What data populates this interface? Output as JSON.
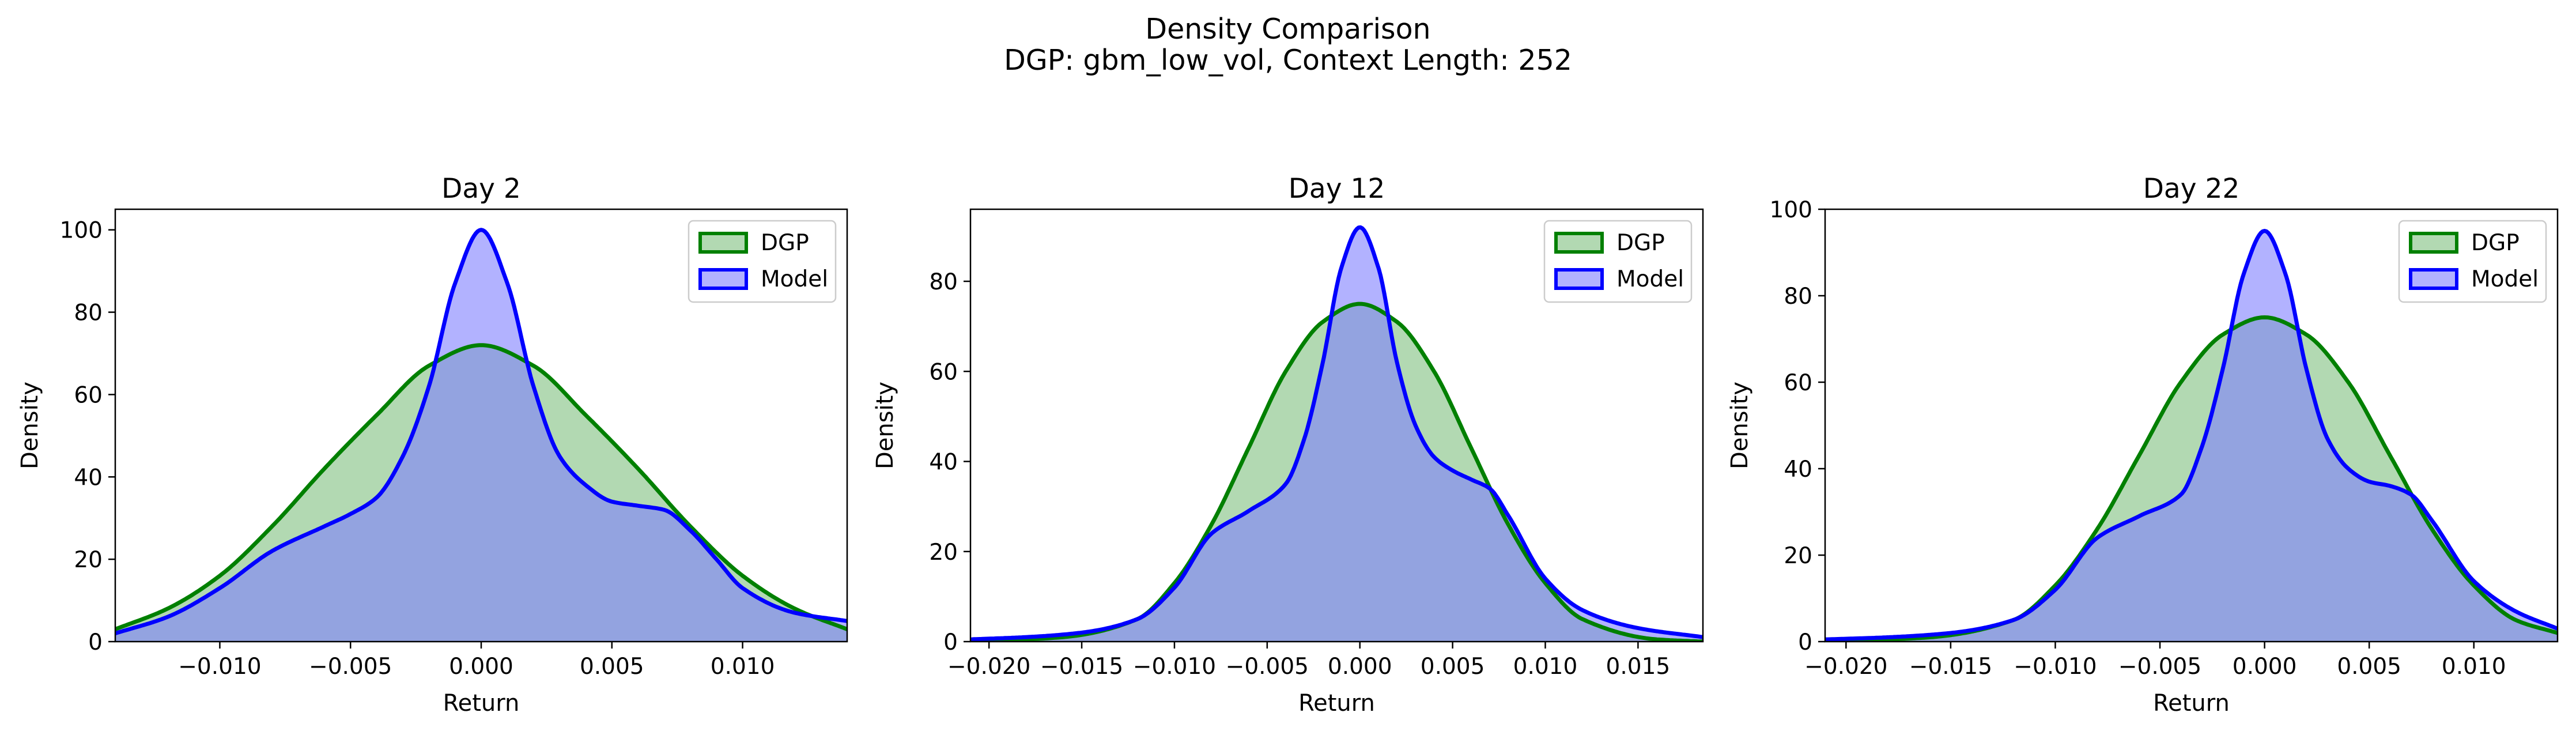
{
  "figure": {
    "title": "Density Comparison",
    "subtitle": "DGP: gbm_low_vol, Context Length: 252"
  },
  "colors": {
    "dgp_line": "#008000",
    "dgp_fill": "#7fbf7f",
    "model_line": "#0000ff",
    "model_fill": "#7f7fff",
    "overlap_fill": "#7f97c8"
  },
  "chart_data": [
    {
      "type": "area",
      "title": "Day 2",
      "xlabel": "Return",
      "ylabel": "Density",
      "xlim": [
        -0.014,
        0.014
      ],
      "ylim": [
        0,
        105
      ],
      "xticks": [
        -0.01,
        -0.005,
        0.0,
        0.005,
        0.01
      ],
      "xtick_labels": [
        "−0.010",
        "−0.005",
        "0.000",
        "0.005",
        "0.010"
      ],
      "yticks": [
        0,
        20,
        40,
        60,
        80,
        100
      ],
      "ytick_labels": [
        "0",
        "20",
        "40",
        "60",
        "80",
        "100"
      ],
      "legend": {
        "position": "top-right",
        "entries": [
          "DGP",
          "Model"
        ]
      },
      "series": [
        {
          "name": "DGP",
          "x": [
            -0.014,
            -0.012,
            -0.01,
            -0.008,
            -0.006,
            -0.004,
            -0.002,
            0.0,
            0.002,
            0.004,
            0.006,
            0.008,
            0.01,
            0.012,
            0.014
          ],
          "values": [
            3,
            8,
            16,
            28,
            42,
            55,
            67,
            72,
            67,
            55,
            42,
            28,
            16,
            8,
            3
          ]
        },
        {
          "name": "Model",
          "x": [
            -0.014,
            -0.012,
            -0.01,
            -0.008,
            -0.006,
            -0.005,
            -0.004,
            -0.003,
            -0.002,
            -0.001,
            0.0,
            0.001,
            0.002,
            0.003,
            0.004,
            0.005,
            0.006,
            0.007,
            0.008,
            0.009,
            0.01,
            0.012,
            0.014
          ],
          "values": [
            2,
            6,
            13,
            22,
            28,
            31,
            35,
            45,
            62,
            87,
            100,
            87,
            62,
            45,
            38,
            34,
            33,
            32,
            27,
            20,
            13,
            7,
            5
          ]
        }
      ]
    },
    {
      "type": "area",
      "title": "Day 12",
      "xlabel": "Return",
      "ylabel": "Density",
      "xlim": [
        -0.021,
        0.0185
      ],
      "ylim": [
        0,
        96
      ],
      "xticks": [
        -0.02,
        -0.015,
        -0.01,
        -0.005,
        0.0,
        0.005,
        0.01,
        0.015
      ],
      "xtick_labels": [
        "−0.020",
        "−0.015",
        "−0.010",
        "−0.005",
        "0.000",
        "0.005",
        "0.010",
        "0.015"
      ],
      "yticks": [
        0,
        20,
        40,
        60,
        80
      ],
      "ytick_labels": [
        "0",
        "20",
        "40",
        "60",
        "80"
      ],
      "legend": {
        "position": "top-right",
        "entries": [
          "DGP",
          "Model"
        ]
      },
      "series": [
        {
          "name": "DGP",
          "x": [
            -0.021,
            -0.016,
            -0.012,
            -0.01,
            -0.008,
            -0.006,
            -0.004,
            -0.002,
            0.0,
            0.002,
            0.004,
            0.006,
            0.008,
            0.01,
            0.012,
            0.016,
            0.0185
          ],
          "values": [
            0,
            1,
            5,
            13,
            26,
            43,
            60,
            71,
            75,
            71,
            60,
            43,
            26,
            13,
            5,
            0.5,
            0
          ]
        },
        {
          "name": "Model",
          "x": [
            -0.021,
            -0.018,
            -0.015,
            -0.012,
            -0.01,
            -0.008,
            -0.006,
            -0.004,
            -0.003,
            -0.002,
            -0.001,
            0.0,
            0.001,
            0.002,
            0.003,
            0.004,
            0.005,
            0.006,
            0.007,
            0.008,
            0.01,
            0.012,
            0.015,
            0.0185
          ],
          "values": [
            0.5,
            1,
            2,
            5,
            12,
            24,
            29,
            35,
            45,
            62,
            83,
            92,
            83,
            62,
            48,
            41,
            38,
            36,
            34,
            28,
            14,
            7,
            3,
            1
          ]
        }
      ]
    },
    {
      "type": "area",
      "title": "Day 22",
      "xlabel": "Return",
      "ylabel": "Density",
      "xlim": [
        -0.021,
        0.014
      ],
      "ylim": [
        0,
        100
      ],
      "xticks": [
        -0.02,
        -0.015,
        -0.01,
        -0.005,
        0.0,
        0.005,
        0.01
      ],
      "xtick_labels": [
        "−0.020",
        "−0.015",
        "−0.010",
        "−0.005",
        "0.000",
        "0.005",
        "0.010"
      ],
      "yticks": [
        0,
        20,
        40,
        60,
        80,
        100
      ],
      "ytick_labels": [
        "0",
        "20",
        "40",
        "60",
        "80",
        "100"
      ],
      "legend": {
        "position": "top-right",
        "entries": [
          "DGP",
          "Model"
        ]
      },
      "series": [
        {
          "name": "DGP",
          "x": [
            -0.021,
            -0.016,
            -0.012,
            -0.01,
            -0.008,
            -0.006,
            -0.004,
            -0.002,
            0.0,
            0.002,
            0.004,
            0.006,
            0.008,
            0.01,
            0.012,
            0.014
          ],
          "values": [
            0,
            1,
            5,
            13,
            26,
            43,
            60,
            71,
            75,
            71,
            60,
            43,
            26,
            13,
            5,
            2
          ]
        },
        {
          "name": "Model",
          "x": [
            -0.021,
            -0.018,
            -0.015,
            -0.012,
            -0.01,
            -0.008,
            -0.006,
            -0.004,
            -0.003,
            -0.002,
            -0.001,
            0.0,
            0.001,
            0.002,
            0.003,
            0.004,
            0.005,
            0.006,
            0.007,
            0.008,
            0.01,
            0.012,
            0.014
          ],
          "values": [
            0.5,
            1,
            2,
            5,
            12,
            24,
            29,
            34,
            45,
            63,
            85,
            95,
            85,
            63,
            47,
            40,
            37,
            36,
            34,
            28,
            14,
            7,
            3
          ]
        }
      ]
    }
  ]
}
